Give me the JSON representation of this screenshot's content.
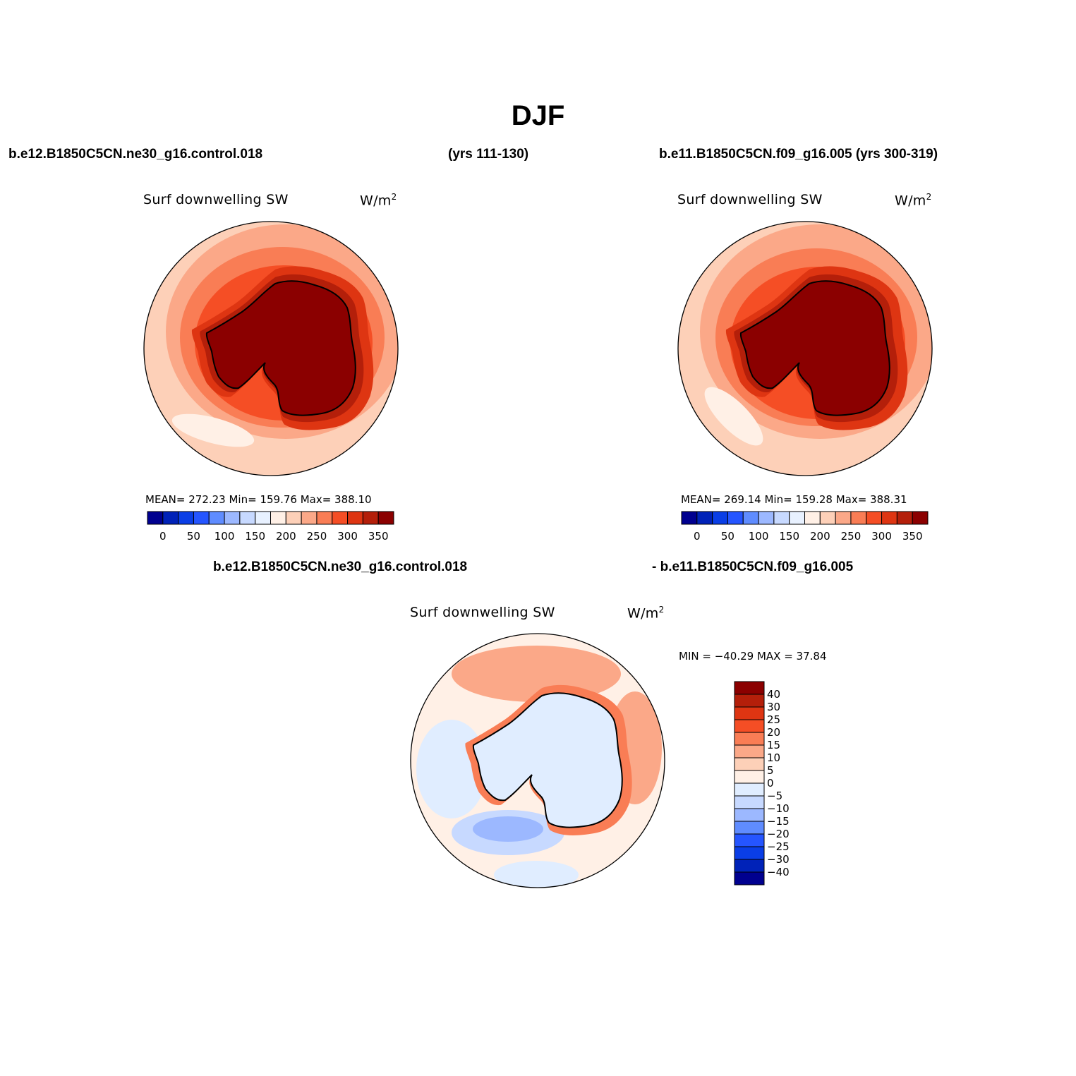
{
  "figure": {
    "title": "DJF",
    "top_left_case": "b.e12.B1850C5CN.ne30_g16.control.018",
    "top_left_years": "(yrs 111-130)",
    "top_right_case": "b.e11.B1850C5CN.f09_g16.005 (yrs 300-319)",
    "diff_case_a": "b.e12.B1850C5CN.ne30_g16.control.018",
    "diff_case_b": "- b.e11.B1850C5CN.f09_g16.005"
  },
  "panels": [
    {
      "variable": "Surf downwelling SW",
      "units": "W/m",
      "units_sup": "2",
      "stats": "MEAN= 272.23   Min= 159.76   Max= 388.10"
    },
    {
      "variable": "Surf downwelling SW",
      "units": "W/m",
      "units_sup": "2",
      "stats": "MEAN= 269.14   Min= 159.28   Max= 388.31"
    },
    {
      "variable": "Surf downwelling SW",
      "units": "W/m",
      "units_sup": "2",
      "stats": "MIN = −40.29 MAX =   37.84"
    }
  ],
  "chart_data": [
    {
      "type": "heatmap",
      "projection": "south polar stereographic",
      "region": "Antarctica",
      "colorbar_orientation": "horizontal",
      "colorbar_labels": [
        "0",
        "50",
        "100",
        "150",
        "200",
        "250",
        "300",
        "350"
      ],
      "colorbar_colors": [
        "#00008f",
        "#0022b8",
        "#0a3ee6",
        "#2555ff",
        "#5f8cff",
        "#9cb8ff",
        "#c7d9ff",
        "#e8f1ff",
        "#fff0e6",
        "#fdd0b8",
        "#fba888",
        "#f97d55",
        "#f54e25",
        "#de3512",
        "#b41f0a",
        "#8b0000"
      ],
      "mean": 272.23,
      "min": 159.76,
      "max": 388.1
    },
    {
      "type": "heatmap",
      "projection": "south polar stereographic",
      "region": "Antarctica",
      "colorbar_orientation": "horizontal",
      "colorbar_labels": [
        "0",
        "50",
        "100",
        "150",
        "200",
        "250",
        "300",
        "350"
      ],
      "colorbar_colors": [
        "#00008f",
        "#0022b8",
        "#0a3ee6",
        "#2555ff",
        "#5f8cff",
        "#9cb8ff",
        "#c7d9ff",
        "#e8f1ff",
        "#fff0e6",
        "#fdd0b8",
        "#fba888",
        "#f97d55",
        "#f54e25",
        "#de3512",
        "#b41f0a",
        "#8b0000"
      ],
      "mean": 269.14,
      "min": 159.28,
      "max": 388.31
    },
    {
      "type": "heatmap",
      "projection": "south polar stereographic",
      "region": "Antarctica",
      "colorbar_orientation": "vertical",
      "colorbar_labels": [
        "40",
        "30",
        "25",
        "20",
        "15",
        "10",
        "5",
        "0",
        "−5",
        "−10",
        "−15",
        "−20",
        "−25",
        "−30",
        "−40"
      ],
      "colorbar_colors": [
        "#8b0000",
        "#b41f0a",
        "#de3512",
        "#f54e25",
        "#f97d55",
        "#fba888",
        "#fdd0b8",
        "#fff0e6",
        "#e0edff",
        "#c7d9ff",
        "#9cb8ff",
        "#5f8cff",
        "#2555ff",
        "#0a3ee6",
        "#0022b8",
        "#00008f"
      ],
      "min": -40.29,
      "max": 37.84
    }
  ]
}
